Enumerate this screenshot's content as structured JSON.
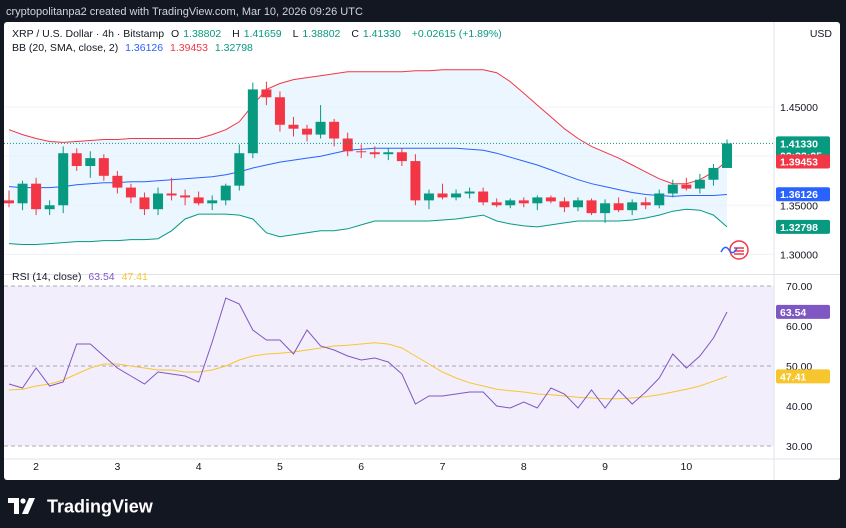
{
  "header": {
    "text": "cryptopolitanpa2 created with TradingView.com, Mar 10, 2026 09:26 UTC"
  },
  "symbol": {
    "name": "XRP / U.S. Dollar · 4h · Bitstamp",
    "o_label": "O",
    "o_value": "1.38802",
    "h_label": "H",
    "h_value": "1.41659",
    "l_label": "L",
    "l_value": "1.38802",
    "c_label": "C",
    "c_value": "1.41330",
    "change": "+0.02615 (+1.89%)"
  },
  "bb_legend": {
    "label": "BB (20, SMA, close, 2)",
    "basis": "1.36126",
    "upper": "1.39453",
    "lower": "1.32798"
  },
  "rsi_legend": {
    "label": "RSI (14, close)",
    "rsi": "63.54",
    "ma": "47.41"
  },
  "currency": "USD",
  "price_tags": {
    "last_price": "1.41330",
    "countdown": "02:33:25",
    "upper": "1.39453",
    "basis": "1.36126",
    "lower": "1.32798",
    "rsi": "63.54",
    "rsi_ma": "47.41"
  },
  "colors": {
    "up": "#089981",
    "down": "#f23645",
    "basis": "#2962ff",
    "upper": "#f23645",
    "lower": "#089981",
    "band_fill": "#e3f2fd",
    "rsi": "#7e57c2",
    "rsi_ma": "#f7c62f",
    "rsi_bg": "#f3eefc"
  },
  "footer": {
    "brand": "TradingView"
  },
  "chart_data": [
    {
      "type": "candlestick",
      "title": "XRP / U.S. Dollar · 4h · Bitstamp",
      "x_ticks": [
        "2",
        "3",
        "4",
        "5",
        "6",
        "7",
        "8",
        "9",
        "10"
      ],
      "x_tick_index": [
        2,
        8,
        14,
        20,
        26,
        32,
        38,
        44,
        50
      ],
      "y_ticks": [
        "1.45000",
        "1.40000",
        "1.35000",
        "1.30000"
      ],
      "ylim": [
        1.28,
        1.5
      ],
      "ohlc": [
        [
          1.355,
          1.365,
          1.348,
          1.352
        ],
        [
          1.352,
          1.375,
          1.345,
          1.372
        ],
        [
          1.372,
          1.378,
          1.34,
          1.346
        ],
        [
          1.346,
          1.355,
          1.34,
          1.35
        ],
        [
          1.35,
          1.41,
          1.342,
          1.403
        ],
        [
          1.403,
          1.408,
          1.385,
          1.39
        ],
        [
          1.39,
          1.405,
          1.378,
          1.398
        ],
        [
          1.398,
          1.402,
          1.375,
          1.38
        ],
        [
          1.38,
          1.385,
          1.362,
          1.368
        ],
        [
          1.368,
          1.372,
          1.352,
          1.358
        ],
        [
          1.358,
          1.363,
          1.34,
          1.346
        ],
        [
          1.346,
          1.368,
          1.34,
          1.362
        ],
        [
          1.362,
          1.378,
          1.355,
          1.36
        ],
        [
          1.36,
          1.366,
          1.35,
          1.358
        ],
        [
          1.358,
          1.364,
          1.35,
          1.352
        ],
        [
          1.352,
          1.36,
          1.345,
          1.355
        ],
        [
          1.355,
          1.372,
          1.35,
          1.37
        ],
        [
          1.37,
          1.412,
          1.365,
          1.403
        ],
        [
          1.403,
          1.475,
          1.398,
          1.468
        ],
        [
          1.468,
          1.476,
          1.452,
          1.46
        ],
        [
          1.46,
          1.466,
          1.425,
          1.432
        ],
        [
          1.432,
          1.44,
          1.42,
          1.428
        ],
        [
          1.428,
          1.432,
          1.415,
          1.422
        ],
        [
          1.422,
          1.452,
          1.418,
          1.435
        ],
        [
          1.435,
          1.438,
          1.41,
          1.418
        ],
        [
          1.418,
          1.424,
          1.4,
          1.405
        ],
        [
          1.405,
          1.412,
          1.398,
          1.404
        ],
        [
          1.404,
          1.41,
          1.398,
          1.402
        ],
        [
          1.402,
          1.408,
          1.396,
          1.404
        ],
        [
          1.404,
          1.408,
          1.39,
          1.395
        ],
        [
          1.395,
          1.402,
          1.35,
          1.355
        ],
        [
          1.355,
          1.366,
          1.346,
          1.362
        ],
        [
          1.362,
          1.372,
          1.356,
          1.358
        ],
        [
          1.358,
          1.366,
          1.355,
          1.362
        ],
        [
          1.362,
          1.368,
          1.357,
          1.364
        ],
        [
          1.364,
          1.368,
          1.35,
          1.353
        ],
        [
          1.353,
          1.357,
          1.348,
          1.35
        ],
        [
          1.35,
          1.357,
          1.347,
          1.355
        ],
        [
          1.355,
          1.358,
          1.348,
          1.352
        ],
        [
          1.352,
          1.36,
          1.345,
          1.358
        ],
        [
          1.358,
          1.36,
          1.352,
          1.354
        ],
        [
          1.354,
          1.358,
          1.343,
          1.348
        ],
        [
          1.348,
          1.358,
          1.344,
          1.355
        ],
        [
          1.355,
          1.357,
          1.34,
          1.342
        ],
        [
          1.342,
          1.356,
          1.332,
          1.352
        ],
        [
          1.352,
          1.358,
          1.343,
          1.345
        ],
        [
          1.345,
          1.356,
          1.34,
          1.353
        ],
        [
          1.353,
          1.358,
          1.346,
          1.35
        ],
        [
          1.35,
          1.366,
          1.347,
          1.362
        ],
        [
          1.362,
          1.376,
          1.358,
          1.371
        ],
        [
          1.371,
          1.378,
          1.365,
          1.367
        ],
        [
          1.367,
          1.382,
          1.362,
          1.376
        ],
        [
          1.376,
          1.392,
          1.37,
          1.388
        ],
        [
          1.388,
          1.417,
          1.388,
          1.413
        ]
      ],
      "bb_basis": [
        1.369,
        1.368,
        1.368,
        1.368,
        1.369,
        1.371,
        1.372,
        1.373,
        1.373,
        1.374,
        1.374,
        1.375,
        1.376,
        1.377,
        1.378,
        1.379,
        1.381,
        1.384,
        1.388,
        1.391,
        1.394,
        1.396,
        1.398,
        1.4,
        1.403,
        1.406,
        1.407,
        1.408,
        1.408,
        1.408,
        1.408,
        1.408,
        1.408,
        1.408,
        1.407,
        1.406,
        1.403,
        1.399,
        1.395,
        1.391,
        1.386,
        1.381,
        1.376,
        1.372,
        1.369,
        1.366,
        1.363,
        1.361,
        1.36,
        1.359,
        1.36,
        1.36,
        1.36,
        1.361
      ],
      "bb_upper": [
        1.427,
        1.422,
        1.418,
        1.415,
        1.414,
        1.415,
        1.416,
        1.417,
        1.417,
        1.418,
        1.418,
        1.418,
        1.418,
        1.418,
        1.418,
        1.422,
        1.427,
        1.435,
        1.452,
        1.468,
        1.474,
        1.478,
        1.48,
        1.482,
        1.484,
        1.486,
        1.486,
        1.486,
        1.486,
        1.486,
        1.487,
        1.487,
        1.488,
        1.488,
        1.488,
        1.488,
        1.485,
        1.476,
        1.464,
        1.452,
        1.44,
        1.428,
        1.418,
        1.41,
        1.404,
        1.398,
        1.391,
        1.384,
        1.377,
        1.372,
        1.372,
        1.376,
        1.384,
        1.395
      ],
      "bb_lower": [
        1.311,
        1.31,
        1.31,
        1.311,
        1.312,
        1.313,
        1.313,
        1.314,
        1.314,
        1.315,
        1.315,
        1.316,
        1.324,
        1.336,
        1.341,
        1.341,
        1.341,
        1.34,
        1.336,
        1.322,
        1.318,
        1.32,
        1.322,
        1.324,
        1.324,
        1.326,
        1.33,
        1.334,
        1.334,
        1.334,
        1.334,
        1.334,
        1.335,
        1.336,
        1.338,
        1.34,
        1.334,
        1.331,
        1.329,
        1.328,
        1.33,
        1.332,
        1.334,
        1.334,
        1.334,
        1.334,
        1.335,
        1.337,
        1.34,
        1.344,
        1.346,
        1.345,
        1.34,
        1.328
      ]
    },
    {
      "type": "line",
      "title": "RSI (14, close)",
      "y_ticks": [
        "70.00",
        "60.00",
        "50.00",
        "40.00",
        "30.00"
      ],
      "ylim": [
        28,
        72
      ],
      "bands": [
        30,
        50,
        70
      ],
      "rsi": [
        45.5,
        44.5,
        49.5,
        45.0,
        46.0,
        55.5,
        55.5,
        52.5,
        49.5,
        47.5,
        45.5,
        48.5,
        48.0,
        47.5,
        46.0,
        56.0,
        67.0,
        65.5,
        59.0,
        56.5,
        56.5,
        53.0,
        59.0,
        55.0,
        54.0,
        52.5,
        51.5,
        52.0,
        51.0,
        48.0,
        40.5,
        42.5,
        42.5,
        43.0,
        43.5,
        43.5,
        40.0,
        39.5,
        41.0,
        39.5,
        44.5,
        43.0,
        39.5,
        44.0,
        39.5,
        44.0,
        40.5,
        43.5,
        47.0,
        53.0,
        49.5,
        52.5,
        57.0,
        63.5
      ],
      "rsi_ma": [
        44.0,
        44.2,
        45.0,
        45.5,
        46.5,
        48.0,
        49.5,
        50.5,
        50.5,
        50.0,
        49.5,
        49.0,
        49.0,
        48.5,
        48.5,
        49.0,
        50.0,
        51.5,
        52.5,
        53.0,
        53.2,
        53.5,
        54.0,
        54.5,
        55.0,
        55.2,
        55.5,
        55.8,
        55.5,
        54.5,
        52.5,
        50.5,
        48.5,
        47.0,
        45.8,
        45.0,
        44.2,
        43.8,
        43.5,
        43.0,
        42.8,
        42.5,
        42.2,
        42.0,
        41.8,
        41.8,
        42.0,
        42.3,
        42.8,
        43.5,
        44.2,
        45.0,
        46.2,
        47.4
      ]
    }
  ]
}
